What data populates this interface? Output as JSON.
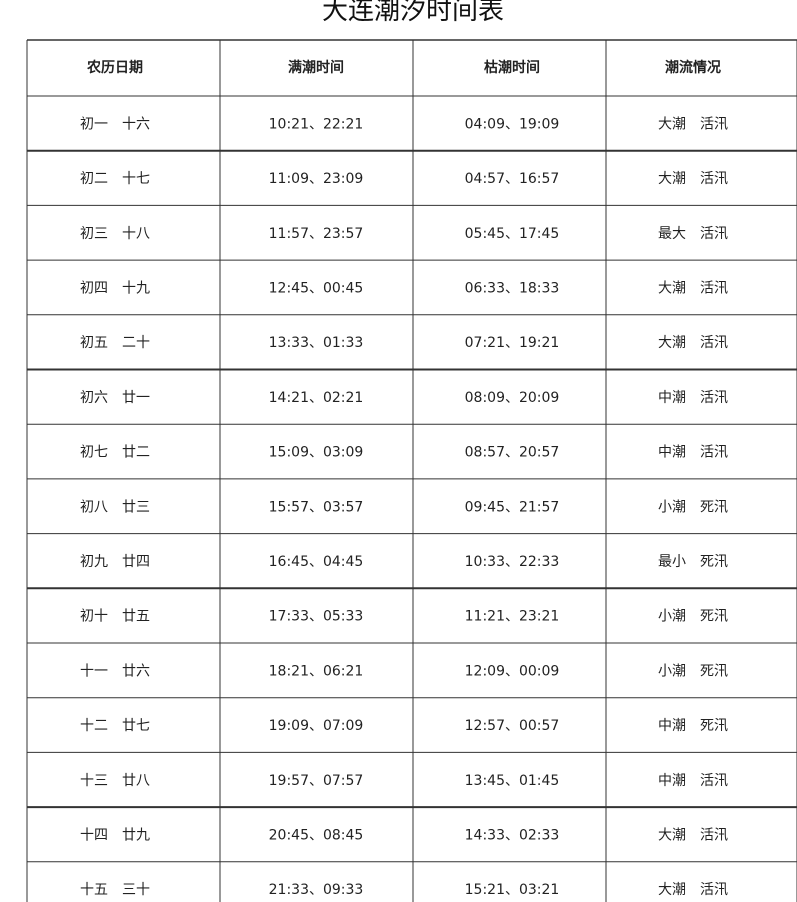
{
  "header": {
    "title": "大连潮汐时间表"
  },
  "table": {
    "headers": [
      "农历日期",
      "满潮时间",
      "枯潮时间",
      "潮流情况"
    ],
    "rows": [
      [
        "初一　十六",
        "10:21、22:21",
        "04:09、19:09",
        "大潮　活汛"
      ],
      [
        "初二　十七",
        "11:09、23:09",
        "04:57、16:57",
        "大潮　活汛"
      ],
      [
        "初三　十八",
        "11:57、23:57",
        "05:45、17:45",
        "最大　活汛"
      ],
      [
        "初四　十九",
        "12:45、00:45",
        "06:33、18:33",
        "大潮　活汛"
      ],
      [
        "初五　二十",
        "13:33、01:33",
        "07:21、19:21",
        "大潮　活汛"
      ],
      [
        "初六　廿一",
        "14:21、02:21",
        "08:09、20:09",
        "中潮　活汛"
      ],
      [
        "初七　廿二",
        "15:09、03:09",
        "08:57、20:57",
        "中潮　活汛"
      ],
      [
        "初八　廿三",
        "15:57、03:57",
        "09:45、21:57",
        "小潮　死汛"
      ],
      [
        "初九　廿四",
        "16:45、04:45",
        "10:33、22:33",
        "最小　死汛"
      ],
      [
        "初十　廿五",
        "17:33、05:33",
        "11:21、23:21",
        "小潮　死汛"
      ],
      [
        "十一　廿六",
        "18:21、06:21",
        "12:09、00:09",
        "小潮　死汛"
      ],
      [
        "十二　廿七",
        "19:09、07:09",
        "12:57、00:57",
        "中潮　死汛"
      ],
      [
        "十三　廿八",
        "19:57、07:57",
        "13:45、01:45",
        "中潮　活汛"
      ],
      [
        "十四　廿九",
        "20:45、08:45",
        "14:33、02:33",
        "大潮　活汛"
      ],
      [
        "十五　三十",
        "21:33、09:33",
        "15:21、03:21",
        "大潮　活汛"
      ]
    ]
  }
}
